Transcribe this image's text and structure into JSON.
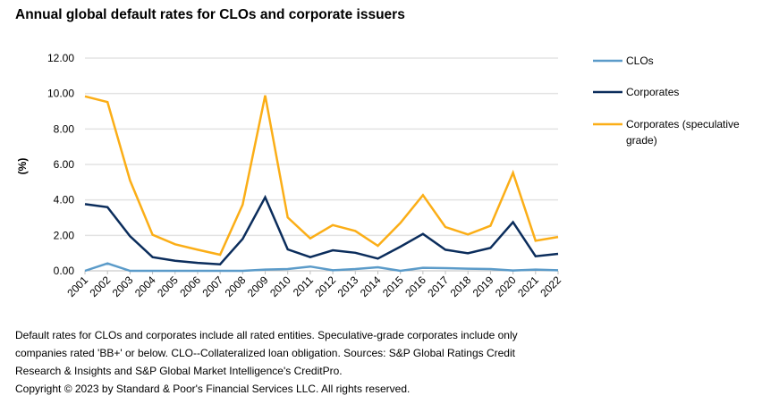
{
  "chart_data": {
    "type": "line",
    "title": "Annual global default rates for CLOs and corporate issuers",
    "xlabel": "",
    "ylabel": "(%)",
    "ylim": [
      0,
      12
    ],
    "yticks": [
      "0.00",
      "2.00",
      "4.00",
      "6.00",
      "8.00",
      "10.00",
      "12.00"
    ],
    "ytick_values": [
      0,
      2,
      4,
      6,
      8,
      10,
      12
    ],
    "grid": true,
    "legend_position": "right",
    "categories": [
      "2001",
      "2002",
      "2003",
      "2004",
      "2005",
      "2006",
      "2007",
      "2008",
      "2009",
      "2010",
      "2011",
      "2012",
      "2013",
      "2014",
      "2015",
      "2016",
      "2017",
      "2018",
      "2019",
      "2020",
      "2021",
      "2022"
    ],
    "series": [
      {
        "name": "CLOs",
        "color": "#5b9bc9",
        "values": [
          0.0,
          0.42,
          0.0,
          0.0,
          0.0,
          0.0,
          0.0,
          0.0,
          0.07,
          0.1,
          0.24,
          0.03,
          0.1,
          0.2,
          0.0,
          0.17,
          0.15,
          0.12,
          0.1,
          0.02,
          0.07,
          0.03
        ]
      },
      {
        "name": "Corporates",
        "color": "#0b2d5c",
        "values": [
          3.76,
          3.59,
          1.95,
          0.77,
          0.57,
          0.45,
          0.37,
          1.8,
          4.15,
          1.21,
          0.77,
          1.16,
          1.02,
          0.69,
          1.36,
          2.08,
          1.19,
          0.99,
          1.29,
          2.75,
          0.82,
          0.96
        ]
      },
      {
        "name": "Corporates (speculative grade)",
        "legend_lines": [
          "Corporates (speculative",
          "grade)"
        ],
        "color": "#fbae17",
        "values": [
          9.84,
          9.52,
          5.1,
          2.03,
          1.5,
          1.19,
          0.91,
          3.73,
          9.89,
          3.01,
          1.83,
          2.58,
          2.25,
          1.41,
          2.7,
          4.27,
          2.47,
          2.05,
          2.54,
          5.53,
          1.7,
          1.91
        ]
      }
    ]
  },
  "footer": {
    "lines": [
      "Default rates for CLOs and corporates include all rated entities. Speculative-grade corporates include only",
      "companies rated 'BB+' or below. CLO--Collateralized loan obligation. Sources: S&P Global Ratings Credit",
      "Research & Insights and S&P Global Market Intelligence's CreditPro.",
      "Copyright © 2023 by Standard & Poor's Financial Services LLC. All rights reserved."
    ]
  }
}
